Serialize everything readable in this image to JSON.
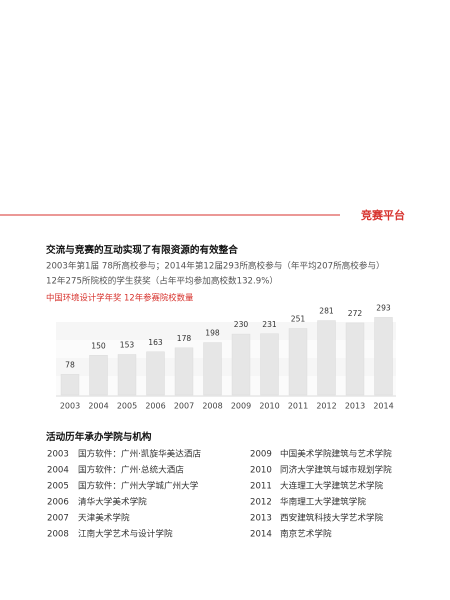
{
  "header": {
    "title": "竞赛平台"
  },
  "section": {
    "heading": "交流与竞赛的互动实现了有限资源的有效整合",
    "lines": [
      "2003年第1届 78所高校参与；2014年第12届293所高校参与（年平均207所高校参与）",
      "12年275所院校的学生获奖（占年平均参加高校数132.9%）"
    ]
  },
  "chart_data": {
    "type": "bar",
    "title": "中国环境设计学年奖 12年参赛院校数量",
    "categories": [
      "2003",
      "2004",
      "2005",
      "2006",
      "2007",
      "2008",
      "2009",
      "2010",
      "2011",
      "2012",
      "2013",
      "2014"
    ],
    "values": [
      78,
      150,
      153,
      163,
      178,
      198,
      230,
      231,
      251,
      281,
      272,
      293
    ],
    "color": "#e6e6e6"
  },
  "list": {
    "heading": "活动历年承办学院与机构",
    "rows": [
      [
        "2003",
        "国方软件：广州·凯旋华美达酒店"
      ],
      [
        "2004",
        "国方软件：广州·总统大酒店"
      ],
      [
        "2005",
        "国方软件：广州大学城广州大学"
      ],
      [
        "2006",
        "清华大学美术学院"
      ],
      [
        "2007",
        "天津美术学院"
      ],
      [
        "2008",
        "江南大学艺术与设计学院"
      ],
      [
        "2009",
        "中国美术学院建筑与艺术学院"
      ],
      [
        "2010",
        "同济大学建筑与城市规划学院"
      ],
      [
        "2011",
        "大连理工大学建筑艺术学院"
      ],
      [
        "2012",
        "华南理工大学建筑学院"
      ],
      [
        "2013",
        "西安建筑科技大学艺术学院"
      ],
      [
        "2014",
        "南京艺术学院"
      ]
    ]
  }
}
